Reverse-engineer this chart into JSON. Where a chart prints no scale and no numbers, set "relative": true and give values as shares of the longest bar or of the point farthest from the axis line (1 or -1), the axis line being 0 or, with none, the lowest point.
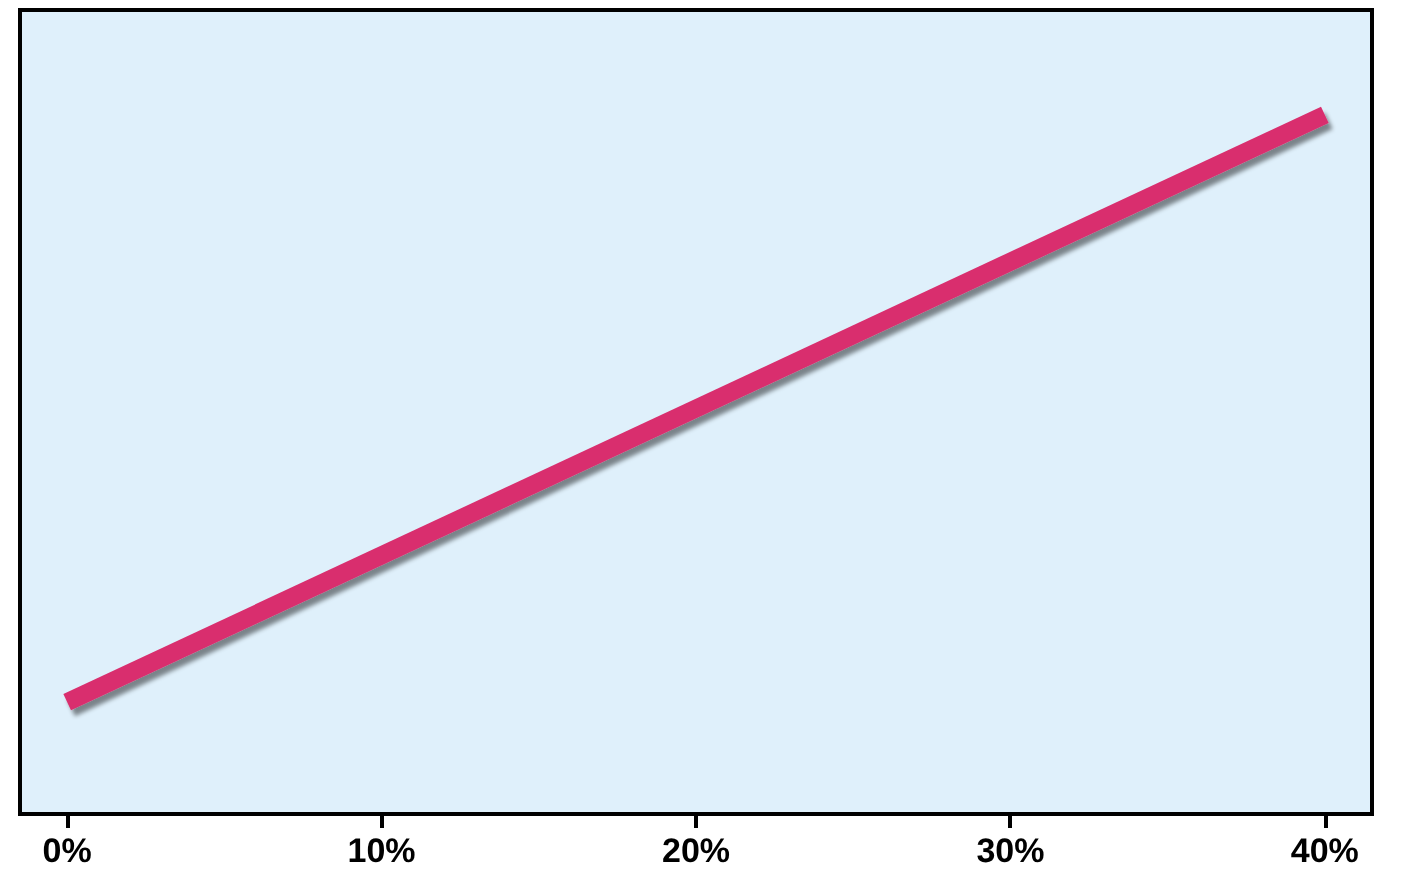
{
  "chart_data": {
    "type": "line",
    "relative": true,
    "x": [
      0,
      40
    ],
    "series": [
      {
        "color": "#d92f6e",
        "values": [
          0.16,
          1
        ]
      }
    ],
    "xlim": [
      -1.5,
      41.5
    ],
    "xticks": [
      {
        "value": 0,
        "label": "0%"
      },
      {
        "value": 10,
        "label": "10%"
      },
      {
        "value": 20,
        "label": "20%"
      },
      {
        "value": 30,
        "label": "30%"
      },
      {
        "value": 40,
        "label": "40%"
      }
    ],
    "marker": "none",
    "line_style": "solid"
  }
}
